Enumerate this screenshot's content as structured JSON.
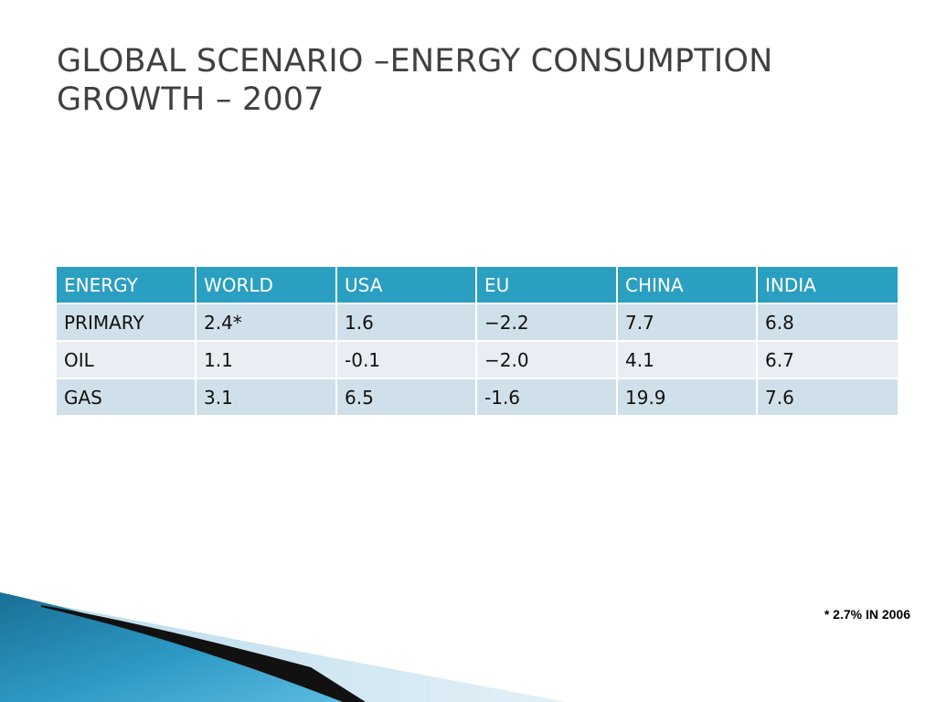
{
  "slide": {
    "title_lines": [
      "GLOBAL SCENARIO –ENERGY CONSUMPTION",
      "GROWTH – 2007"
    ]
  },
  "table": {
    "headers": [
      "ENERGY",
      "WORLD",
      "USA",
      "EU",
      "CHINA",
      "INDIA"
    ],
    "rows": [
      [
        "PRIMARY",
        "2.4*",
        "1.6",
        "−2.2",
        "7.7",
        "6.8"
      ],
      [
        "OIL",
        "1.1",
        "-0.1",
        "−2.0",
        "4.1",
        "6.7"
      ],
      [
        "GAS",
        "3.1",
        "6.5",
        "-1.6",
        "19.9",
        "7.6"
      ]
    ]
  },
  "footnote": "* 2.7% IN 2006",
  "colors": {
    "header_bg": "#2a9fc1",
    "row_odd": "#cfe0ea",
    "row_even": "#e8eef3",
    "accent_teal": "#1e7fa8"
  }
}
